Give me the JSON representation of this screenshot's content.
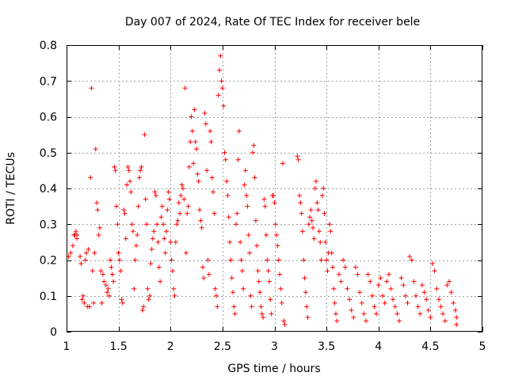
{
  "chart_data": {
    "type": "scatter",
    "title": "Day 007 of 2024, Rate Of TEC Index for receiver bele",
    "xlabel": "GPS time / hours",
    "ylabel": "ROTI / TECUs",
    "xlim": [
      1,
      5
    ],
    "ylim": [
      0,
      0.8
    ],
    "xticks": [
      1,
      1.5,
      2,
      2.5,
      3,
      3.5,
      4,
      4.5,
      5
    ],
    "xtick_labels": [
      "1",
      "1.5",
      "2",
      "2.5",
      "3",
      "3.5",
      "4",
      "4.5",
      "5"
    ],
    "yticks": [
      0,
      0.1,
      0.2,
      0.3,
      0.4,
      0.5,
      0.6,
      0.7,
      0.8
    ],
    "ytick_labels": [
      "0",
      "0.1",
      "0.2",
      "0.3",
      "0.4",
      "0.5",
      "0.6",
      "0.7",
      "0.8"
    ],
    "grid": true,
    "marker": "+",
    "color": "#ff0000",
    "series": [
      {
        "name": "ROTI",
        "points": [
          [
            1.02,
            0.21
          ],
          [
            1.04,
            0.22
          ],
          [
            1.06,
            0.24
          ],
          [
            1.07,
            0.27
          ],
          [
            1.08,
            0.27
          ],
          [
            1.09,
            0.28
          ],
          [
            1.1,
            0.26
          ],
          [
            1.1,
            0.27
          ],
          [
            1.13,
            0.21
          ],
          [
            1.14,
            0.19
          ],
          [
            1.15,
            0.09
          ],
          [
            1.16,
            0.1
          ],
          [
            1.17,
            0.08
          ],
          [
            1.18,
            0.2
          ],
          [
            1.19,
            0.22
          ],
          [
            1.2,
            0.07
          ],
          [
            1.21,
            0.23
          ],
          [
            1.22,
            0.07
          ],
          [
            1.23,
            0.43
          ],
          [
            1.24,
            0.68
          ],
          [
            1.25,
            0.17
          ],
          [
            1.26,
            0.08
          ],
          [
            1.27,
            0.22
          ],
          [
            1.28,
            0.51
          ],
          [
            1.29,
            0.36
          ],
          [
            1.3,
            0.34
          ],
          [
            1.31,
            0.27
          ],
          [
            1.32,
            0.29
          ],
          [
            1.33,
            0.17
          ],
          [
            1.34,
            0.08
          ],
          [
            1.35,
            0.16
          ],
          [
            1.36,
            0.14
          ],
          [
            1.38,
            0.13
          ],
          [
            1.39,
            0.11
          ],
          [
            1.4,
            0.12
          ],
          [
            1.41,
            0.1
          ],
          [
            1.42,
            0.2
          ],
          [
            1.43,
            0.18
          ],
          [
            1.44,
            0.16
          ],
          [
            1.45,
            0.14
          ],
          [
            1.46,
            0.46
          ],
          [
            1.47,
            0.45
          ],
          [
            1.48,
            0.35
          ],
          [
            1.49,
            0.3
          ],
          [
            1.5,
            0.22
          ],
          [
            1.51,
            0.2
          ],
          [
            1.52,
            0.17
          ],
          [
            1.53,
            0.09
          ],
          [
            1.54,
            0.08
          ],
          [
            1.55,
            0.34
          ],
          [
            1.56,
            0.33
          ],
          [
            1.57,
            0.26
          ],
          [
            1.58,
            0.41
          ],
          [
            1.59,
            0.46
          ],
          [
            1.6,
            0.45
          ],
          [
            1.61,
            0.42
          ],
          [
            1.62,
            0.39
          ],
          [
            1.63,
            0.3
          ],
          [
            1.64,
            0.28
          ],
          [
            1.65,
            0.12
          ],
          [
            1.66,
            0.2
          ],
          [
            1.67,
            0.24
          ],
          [
            1.68,
            0.27
          ],
          [
            1.69,
            0.35
          ],
          [
            1.7,
            0.43
          ],
          [
            1.71,
            0.45
          ],
          [
            1.72,
            0.46
          ],
          [
            1.73,
            0.06
          ],
          [
            1.74,
            0.07
          ],
          [
            1.75,
            0.55
          ],
          [
            1.76,
            0.37
          ],
          [
            1.77,
            0.3
          ],
          [
            1.78,
            0.12
          ],
          [
            1.79,
            0.09
          ],
          [
            1.8,
            0.1
          ],
          [
            1.81,
            0.19
          ],
          [
            1.82,
            0.23
          ],
          [
            1.83,
            0.26
          ],
          [
            1.84,
            0.28
          ],
          [
            1.85,
            0.39
          ],
          [
            1.86,
            0.38
          ],
          [
            1.87,
            0.3
          ],
          [
            1.88,
            0.25
          ],
          [
            1.89,
            0.18
          ],
          [
            1.9,
            0.14
          ],
          [
            1.91,
            0.32
          ],
          [
            1.92,
            0.35
          ],
          [
            1.93,
            0.3
          ],
          [
            1.94,
            0.26
          ],
          [
            1.95,
            0.22
          ],
          [
            1.96,
            0.28
          ],
          [
            1.97,
            0.34
          ],
          [
            1.98,
            0.39
          ],
          [
            1.99,
            0.37
          ],
          [
            2,
            0.25
          ],
          [
            2.01,
            0.2
          ],
          [
            2.02,
            0.17
          ],
          [
            2.03,
            0.12
          ],
          [
            2.04,
            0.1
          ],
          [
            2.05,
            0.25
          ],
          [
            2.06,
            0.3
          ],
          [
            2.07,
            0.31
          ],
          [
            2.08,
            0.36
          ],
          [
            2.09,
            0.33
          ],
          [
            2.1,
            0.38
          ],
          [
            2.11,
            0.41
          ],
          [
            2.12,
            0.4
          ],
          [
            2.13,
            0.37
          ],
          [
            2.14,
            0.68
          ],
          [
            2.15,
            0.22
          ],
          [
            2.16,
            0.33
          ],
          [
            2.17,
            0.35
          ],
          [
            2.18,
            0.46
          ],
          [
            2.19,
            0.53
          ],
          [
            2.2,
            0.6
          ],
          [
            2.21,
            0.56
          ],
          [
            2.22,
            0.47
          ],
          [
            2.23,
            0.62
          ],
          [
            2.24,
            0.53
          ],
          [
            2.25,
            0.51
          ],
          [
            2.26,
            0.44
          ],
          [
            2.27,
            0.42
          ],
          [
            2.28,
            0.34
          ],
          [
            2.29,
            0.31
          ],
          [
            2.3,
            0.29
          ],
          [
            2.31,
            0.18
          ],
          [
            2.32,
            0.15
          ],
          [
            2.33,
            0.61
          ],
          [
            2.34,
            0.58
          ],
          [
            2.35,
            0.45
          ],
          [
            2.36,
            0.2
          ],
          [
            2.37,
            0.16
          ],
          [
            2.38,
            0.56
          ],
          [
            2.39,
            0.53
          ],
          [
            2.4,
            0.43
          ],
          [
            2.41,
            0.39
          ],
          [
            2.42,
            0.33
          ],
          [
            2.43,
            0.12
          ],
          [
            2.44,
            0.1
          ],
          [
            2.45,
            0.07
          ],
          [
            2.46,
            0.66
          ],
          [
            2.47,
            0.73
          ],
          [
            2.48,
            0.77
          ],
          [
            2.49,
            0.7
          ],
          [
            2.5,
            0.68
          ],
          [
            2.51,
            0.63
          ],
          [
            2.52,
            0.5
          ],
          [
            2.53,
            0.48
          ],
          [
            2.54,
            0.42
          ],
          [
            2.55,
            0.38
          ],
          [
            2.56,
            0.32
          ],
          [
            2.57,
            0.25
          ],
          [
            2.58,
            0.2
          ],
          [
            2.59,
            0.15
          ],
          [
            2.6,
            0.11
          ],
          [
            2.61,
            0.07
          ],
          [
            2.62,
            0.05
          ],
          [
            2.63,
            0.3
          ],
          [
            2.64,
            0.33
          ],
          [
            2.65,
            0.48
          ],
          [
            2.66,
            0.56
          ],
          [
            2.67,
            0.25
          ],
          [
            2.68,
            0.2
          ],
          [
            2.69,
            0.17
          ],
          [
            2.7,
            0.12
          ],
          [
            2.71,
            0.41
          ],
          [
            2.72,
            0.45
          ],
          [
            2.73,
            0.38
          ],
          [
            2.74,
            0.35
          ],
          [
            2.75,
            0.27
          ],
          [
            2.76,
            0.22
          ],
          [
            2.77,
            0.1
          ],
          [
            2.78,
            0.07
          ],
          [
            2.79,
            0.5
          ],
          [
            2.8,
            0.52
          ],
          [
            2.81,
            0.43
          ],
          [
            2.82,
            0.31
          ],
          [
            2.83,
            0.24
          ],
          [
            2.84,
            0.17
          ],
          [
            2.85,
            0.14
          ],
          [
            2.86,
            0.11
          ],
          [
            2.87,
            0.07
          ],
          [
            2.88,
            0.05
          ],
          [
            2.89,
            0.04
          ],
          [
            2.9,
            0.37
          ],
          [
            2.91,
            0.35
          ],
          [
            2.92,
            0.27
          ],
          [
            2.93,
            0.2
          ],
          [
            2.94,
            0.17
          ],
          [
            2.95,
            0.14
          ],
          [
            2.96,
            0.09
          ],
          [
            2.97,
            0.05
          ],
          [
            2.98,
            0.38
          ],
          [
            2.99,
            0.38
          ],
          [
            3,
            0.36
          ],
          [
            3.01,
            0.3
          ],
          [
            3.02,
            0.27
          ],
          [
            3.03,
            0.24
          ],
          [
            3.04,
            0.2
          ],
          [
            3.05,
            0.16
          ],
          [
            3.06,
            0.12
          ],
          [
            3.07,
            0.08
          ],
          [
            3.08,
            0.47
          ],
          [
            3.09,
            0.03
          ],
          [
            3.1,
            0.02
          ],
          [
            3.22,
            0.49
          ],
          [
            3.23,
            0.48
          ],
          [
            3.24,
            0.38
          ],
          [
            3.25,
            0.36
          ],
          [
            3.26,
            0.33
          ],
          [
            3.27,
            0.28
          ],
          [
            3.28,
            0.2
          ],
          [
            3.29,
            0.15
          ],
          [
            3.3,
            0.11
          ],
          [
            3.31,
            0.07
          ],
          [
            3.32,
            0.04
          ],
          [
            3.33,
            0.3
          ],
          [
            3.34,
            0.32
          ],
          [
            3.35,
            0.34
          ],
          [
            3.36,
            0.31
          ],
          [
            3.37,
            0.29
          ],
          [
            3.38,
            0.26
          ],
          [
            3.39,
            0.4
          ],
          [
            3.4,
            0.42
          ],
          [
            3.41,
            0.36
          ],
          [
            3.42,
            0.34
          ],
          [
            3.43,
            0.28
          ],
          [
            3.44,
            0.25
          ],
          [
            3.45,
            0.2
          ],
          [
            3.46,
            0.38
          ],
          [
            3.47,
            0.4
          ],
          [
            3.48,
            0.33
          ],
          [
            3.49,
            0.25
          ],
          [
            3.5,
            0.2
          ],
          [
            3.51,
            0.17
          ],
          [
            3.52,
            0.22
          ],
          [
            3.53,
            0.3
          ],
          [
            3.54,
            0.28
          ],
          [
            3.55,
            0.22
          ],
          [
            3.56,
            0.18
          ],
          [
            3.57,
            0.12
          ],
          [
            3.58,
            0.08
          ],
          [
            3.59,
            0.05
          ],
          [
            3.6,
            0.03
          ],
          [
            3.62,
            0.16
          ],
          [
            3.64,
            0.14
          ],
          [
            3.66,
            0.2
          ],
          [
            3.68,
            0.18
          ],
          [
            3.7,
            0.12
          ],
          [
            3.72,
            0.09
          ],
          [
            3.74,
            0.06
          ],
          [
            3.76,
            0.04
          ],
          [
            3.78,
            0.18
          ],
          [
            3.8,
            0.16
          ],
          [
            3.82,
            0.11
          ],
          [
            3.84,
            0.08
          ],
          [
            3.86,
            0.05
          ],
          [
            3.88,
            0.03
          ],
          [
            3.9,
            0.16
          ],
          [
            3.92,
            0.14
          ],
          [
            3.94,
            0.1
          ],
          [
            3.96,
            0.07
          ],
          [
            3.98,
            0.05
          ],
          [
            4,
            0.13
          ],
          [
            4.02,
            0.15
          ],
          [
            4.04,
            0.1
          ],
          [
            4.06,
            0.08
          ],
          [
            4.08,
            0.14
          ],
          [
            4.1,
            0.16
          ],
          [
            4.12,
            0.12
          ],
          [
            4.14,
            0.09
          ],
          [
            4.16,
            0.07
          ],
          [
            4.18,
            0.05
          ],
          [
            4.2,
            0.03
          ],
          [
            4.22,
            0.15
          ],
          [
            4.24,
            0.13
          ],
          [
            4.26,
            0.1
          ],
          [
            4.28,
            0.08
          ],
          [
            4.3,
            0.21
          ],
          [
            4.32,
            0.2
          ],
          [
            4.34,
            0.14
          ],
          [
            4.36,
            0.1
          ],
          [
            4.38,
            0.07
          ],
          [
            4.4,
            0.05
          ],
          [
            4.42,
            0.13
          ],
          [
            4.44,
            0.11
          ],
          [
            4.46,
            0.09
          ],
          [
            4.48,
            0.06
          ],
          [
            4.5,
            0.04
          ],
          [
            4.52,
            0.19
          ],
          [
            4.54,
            0.17
          ],
          [
            4.56,
            0.12
          ],
          [
            4.58,
            0.09
          ],
          [
            4.6,
            0.07
          ],
          [
            4.62,
            0.05
          ],
          [
            4.64,
            0.03
          ],
          [
            4.66,
            0.13
          ],
          [
            4.68,
            0.14
          ],
          [
            4.7,
            0.11
          ],
          [
            4.72,
            0.08
          ],
          [
            4.74,
            0.06
          ],
          [
            4.75,
            0.04
          ],
          [
            4.75,
            0.02
          ]
        ]
      }
    ]
  }
}
